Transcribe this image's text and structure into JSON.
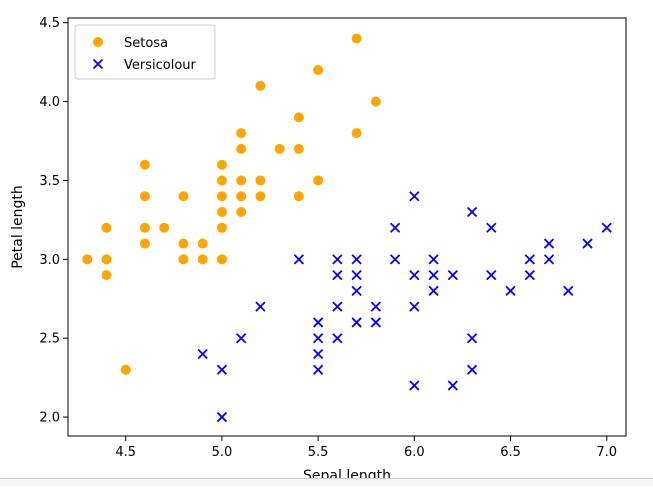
{
  "chart_data": {
    "type": "scatter",
    "title": "",
    "xlabel": "Sepal length",
    "ylabel": "Petal length",
    "xlim": [
      4.2,
      7.1
    ],
    "ylim": [
      1.88,
      4.53
    ],
    "xticks": [
      4.5,
      5.0,
      5.5,
      6.0,
      6.5,
      7.0
    ],
    "xtick_labels": [
      "4.5",
      "5.0",
      "5.5",
      "6.0",
      "6.5",
      "7.0"
    ],
    "yticks": [
      2.0,
      2.5,
      3.0,
      3.5,
      4.0,
      4.5
    ],
    "ytick_labels": [
      "2.0",
      "2.5",
      "3.0",
      "3.5",
      "4.0",
      "4.5"
    ],
    "grid": false,
    "legend_position": "top-left",
    "series": [
      {
        "name": "Setosa",
        "marker": "circle",
        "color": "#ffa500",
        "points": [
          [
            4.3,
            3.0
          ],
          [
            4.4,
            3.2
          ],
          [
            4.4,
            3.0
          ],
          [
            4.4,
            2.9
          ],
          [
            4.5,
            2.3
          ],
          [
            4.6,
            3.6
          ],
          [
            4.6,
            3.4
          ],
          [
            4.6,
            3.2
          ],
          [
            4.6,
            3.1
          ],
          [
            4.7,
            3.2
          ],
          [
            4.8,
            3.4
          ],
          [
            4.8,
            3.1
          ],
          [
            4.8,
            3.0
          ],
          [
            4.9,
            3.1
          ],
          [
            4.9,
            3.0
          ],
          [
            5.0,
            3.6
          ],
          [
            5.0,
            3.5
          ],
          [
            5.0,
            3.4
          ],
          [
            5.0,
            3.3
          ],
          [
            5.0,
            3.2
          ],
          [
            5.0,
            3.0
          ],
          [
            5.1,
            3.8
          ],
          [
            5.1,
            3.7
          ],
          [
            5.1,
            3.5
          ],
          [
            5.1,
            3.4
          ],
          [
            5.1,
            3.3
          ],
          [
            5.2,
            4.1
          ],
          [
            5.2,
            3.5
          ],
          [
            5.2,
            3.4
          ],
          [
            5.3,
            3.7
          ],
          [
            5.4,
            3.9
          ],
          [
            5.4,
            3.7
          ],
          [
            5.4,
            3.4
          ],
          [
            5.5,
            4.2
          ],
          [
            5.5,
            3.5
          ],
          [
            5.7,
            4.4
          ],
          [
            5.7,
            3.8
          ],
          [
            5.8,
            4.0
          ]
        ]
      },
      {
        "name": "Versicolour",
        "marker": "x",
        "color": "#0000ff",
        "points": [
          [
            4.9,
            2.4
          ],
          [
            5.0,
            2.3
          ],
          [
            5.0,
            2.0
          ],
          [
            5.1,
            2.5
          ],
          [
            5.2,
            2.7
          ],
          [
            5.4,
            3.0
          ],
          [
            5.5,
            2.6
          ],
          [
            5.5,
            2.5
          ],
          [
            5.5,
            2.4
          ],
          [
            5.5,
            2.3
          ],
          [
            5.6,
            3.0
          ],
          [
            5.6,
            2.9
          ],
          [
            5.6,
            2.7
          ],
          [
            5.6,
            2.5
          ],
          [
            5.7,
            3.0
          ],
          [
            5.7,
            2.9
          ],
          [
            5.7,
            2.8
          ],
          [
            5.7,
            2.6
          ],
          [
            5.8,
            2.7
          ],
          [
            5.8,
            2.6
          ],
          [
            5.9,
            3.2
          ],
          [
            5.9,
            3.0
          ],
          [
            6.0,
            3.4
          ],
          [
            6.0,
            2.9
          ],
          [
            6.0,
            2.7
          ],
          [
            6.0,
            2.2
          ],
          [
            6.1,
            3.0
          ],
          [
            6.1,
            2.9
          ],
          [
            6.1,
            2.8
          ],
          [
            6.2,
            2.9
          ],
          [
            6.2,
            2.2
          ],
          [
            6.3,
            3.3
          ],
          [
            6.3,
            2.5
          ],
          [
            6.3,
            2.3
          ],
          [
            6.4,
            3.2
          ],
          [
            6.4,
            2.9
          ],
          [
            6.5,
            2.8
          ],
          [
            6.6,
            3.0
          ],
          [
            6.6,
            2.9
          ],
          [
            6.7,
            3.1
          ],
          [
            6.7,
            3.0
          ],
          [
            6.8,
            2.8
          ],
          [
            6.9,
            3.1
          ],
          [
            7.0,
            3.2
          ]
        ]
      }
    ]
  }
}
